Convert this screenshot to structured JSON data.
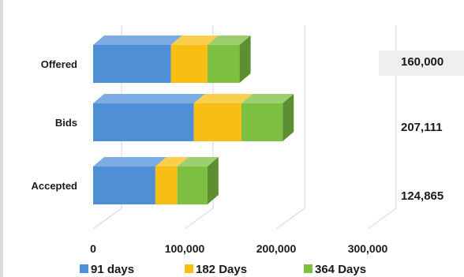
{
  "chart_data": {
    "type": "bar",
    "orientation": "horizontal",
    "stacked": true,
    "three_d": true,
    "categories": [
      "Offered",
      "Bids",
      "Accepted"
    ],
    "series": [
      {
        "name": "91 days",
        "values": [
          85000,
          110000,
          68000
        ],
        "color": "#4f8fd6"
      },
      {
        "name": "182 Days",
        "values": [
          40000,
          52000,
          24000
        ],
        "color": "#f8be13"
      },
      {
        "name": "364 Days",
        "values": [
          35000,
          45111,
          32865
        ],
        "color": "#7cbf41"
      }
    ],
    "totals": [
      "160,000",
      "207,111",
      "124,865"
    ],
    "x_ticks": [
      "0",
      "100,000",
      "200,000",
      "300,000"
    ],
    "xlim": [
      0,
      300000
    ],
    "legend_position": "bottom",
    "grid": true
  }
}
